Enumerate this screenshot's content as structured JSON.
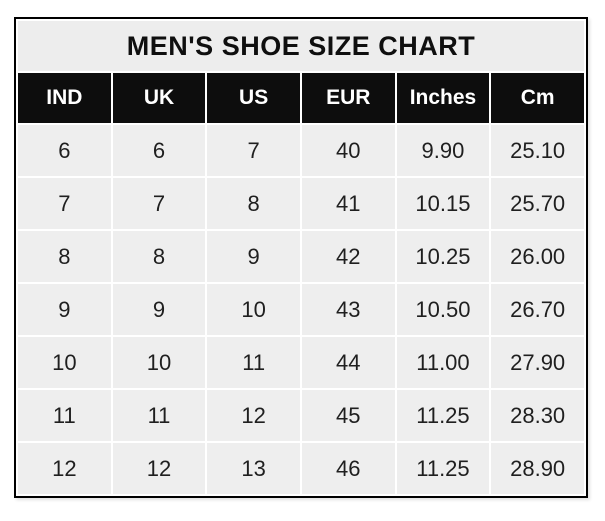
{
  "chart_data": {
    "type": "table",
    "title": "MEN'S SHOE SIZE CHART",
    "columns": [
      "IND",
      "UK",
      "US",
      "EUR",
      "Inches",
      "Cm"
    ],
    "rows": [
      [
        "6",
        "6",
        "7",
        "40",
        "9.90",
        "25.10"
      ],
      [
        "7",
        "7",
        "8",
        "41",
        "10.15",
        "25.70"
      ],
      [
        "8",
        "8",
        "9",
        "42",
        "10.25",
        "26.00"
      ],
      [
        "9",
        "9",
        "10",
        "43",
        "10.50",
        "26.70"
      ],
      [
        "10",
        "10",
        "11",
        "44",
        "11.00",
        "27.90"
      ],
      [
        "11",
        "11",
        "12",
        "45",
        "11.25",
        "28.30"
      ],
      [
        "12",
        "12",
        "13",
        "46",
        "11.25",
        "28.90"
      ]
    ]
  },
  "colors": {
    "header_bg": "#0d0d0d",
    "header_text": "#ffffff",
    "cell_bg": "#eeeeee",
    "title_bg": "#ededed",
    "border": "#000000",
    "cell_text": "#1f1f1f",
    "page_bg": "#ffffff"
  }
}
